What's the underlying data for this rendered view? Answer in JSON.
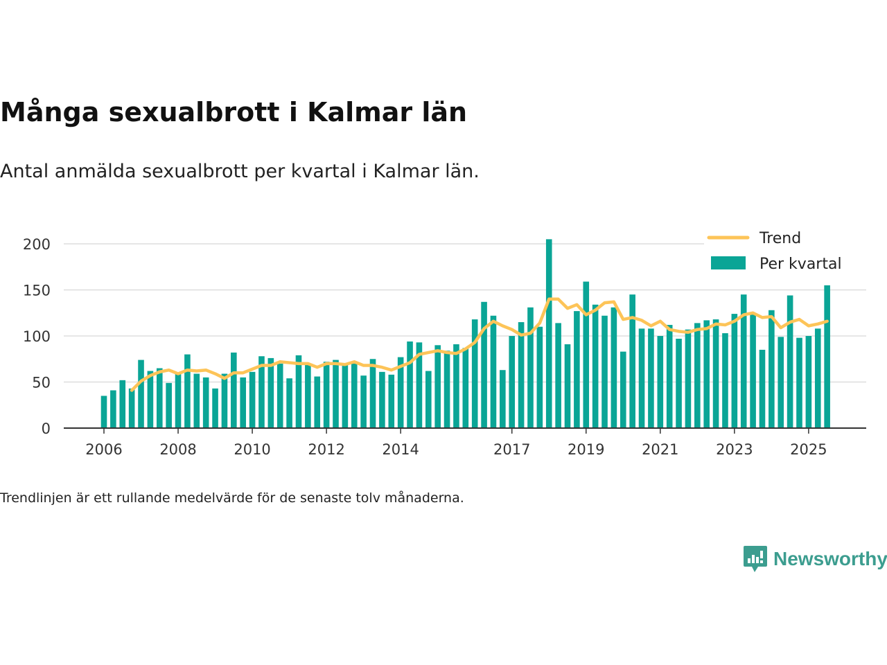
{
  "header": {
    "title": "Många sexualbrott i Kalmar län",
    "subtitle": "Antal anmälda sexualbrott per kvartal i Kalmar län."
  },
  "note": "Trendlinjen är ett rullande medelvärde för de senaste tolv månaderna.",
  "brand": {
    "name": "Newsworthy",
    "icon": "newsworthy-logo-icon"
  },
  "colors": {
    "bars": "#0aa596",
    "trend": "#fdc458",
    "grid": "#dddddd",
    "axis": "#333333"
  },
  "chart_data": {
    "type": "bar",
    "title": "Antal anmälda sexualbrott per kvartal i Kalmar län",
    "xlabel": "",
    "ylabel": "",
    "ylim": [
      0,
      200
    ],
    "yticks": [
      0,
      50,
      100,
      150,
      200
    ],
    "x_start_year": 2006,
    "x_ticks": [
      "2006",
      "2008",
      "2010",
      "2012",
      "2014",
      "2017",
      "2019",
      "2021",
      "2023",
      "2025"
    ],
    "legend": {
      "placement": "top-right",
      "entries": [
        "Trend",
        "Per kvartal"
      ]
    },
    "series": [
      {
        "name": "Per kvartal",
        "type": "bar",
        "values": [
          35,
          41,
          52,
          43,
          74,
          62,
          65,
          49,
          60,
          80,
          59,
          55,
          43,
          59,
          82,
          55,
          61,
          78,
          76,
          70,
          54,
          79,
          70,
          56,
          72,
          74,
          69,
          70,
          57,
          75,
          61,
          58,
          77,
          94,
          93,
          62,
          90,
          84,
          91,
          87,
          118,
          137,
          122,
          63,
          100,
          115,
          131,
          110,
          205,
          114,
          91,
          127,
          159,
          134,
          122,
          131,
          83,
          145,
          108,
          108,
          100,
          112,
          97,
          107,
          114,
          117,
          118,
          103,
          124,
          145,
          124,
          85,
          128,
          99,
          144,
          98,
          100,
          108,
          155
        ]
      },
      {
        "name": "Trend",
        "type": "line",
        "start_index": 3,
        "values": [
          41,
          51,
          57,
          61,
          63,
          59,
          63,
          62,
          63,
          59,
          54,
          60,
          60,
          64,
          68,
          68,
          72,
          71,
          70,
          70,
          66,
          70,
          70,
          69,
          72,
          68,
          68,
          66,
          63,
          67,
          71,
          80,
          82,
          84,
          82,
          81,
          86,
          93,
          108,
          116,
          111,
          107,
          101,
          103,
          114,
          140,
          140,
          130,
          134,
          123,
          128,
          136,
          137,
          118,
          120,
          117,
          111,
          116,
          107,
          105,
          104,
          107,
          108,
          113,
          112,
          116,
          123,
          125,
          120,
          121,
          109,
          115,
          118,
          111,
          113,
          116
        ]
      }
    ]
  }
}
